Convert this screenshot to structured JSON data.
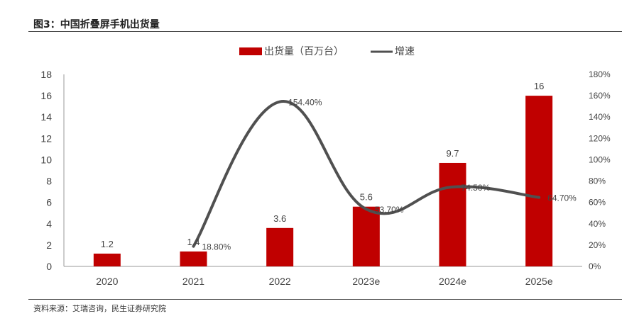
{
  "figure": {
    "title": "图3：中国折叠屏手机出货量",
    "source": "资料来源：艾瑞咨询，民生证券研究院"
  },
  "colors": {
    "bar": "#c00000",
    "line": "#505050"
  },
  "chart_data": {
    "type": "bar",
    "categories": [
      "2020",
      "2021",
      "2022",
      "2023e",
      "2024e",
      "2025e"
    ],
    "series": [
      {
        "name": "出货量（百万台）",
        "type": "bar",
        "axis": "left",
        "values": [
          1.2,
          1.4,
          3.6,
          5.6,
          9.7,
          16
        ],
        "labels": [
          "1.2",
          "1.4",
          "3.6",
          "5.6",
          "9.7",
          "16"
        ]
      },
      {
        "name": "增速",
        "type": "line",
        "axis": "right",
        "values": [
          null,
          18.8,
          154.4,
          53.7,
          74.5,
          64.7
        ],
        "labels": [
          "",
          "18.80%",
          "154.40%",
          "53.70%",
          "74.50%",
          "64.70%"
        ]
      }
    ],
    "y_left": {
      "lim": [
        0,
        18
      ],
      "ticks": [
        "0",
        "2",
        "4",
        "6",
        "8",
        "10",
        "12",
        "14",
        "16",
        "18"
      ]
    },
    "y_right": {
      "lim": [
        0,
        180
      ],
      "ticks": [
        "0%",
        "20%",
        "40%",
        "60%",
        "80%",
        "100%",
        "120%",
        "140%",
        "160%",
        "180%"
      ]
    },
    "legend_position": "top-center",
    "grid": false
  }
}
